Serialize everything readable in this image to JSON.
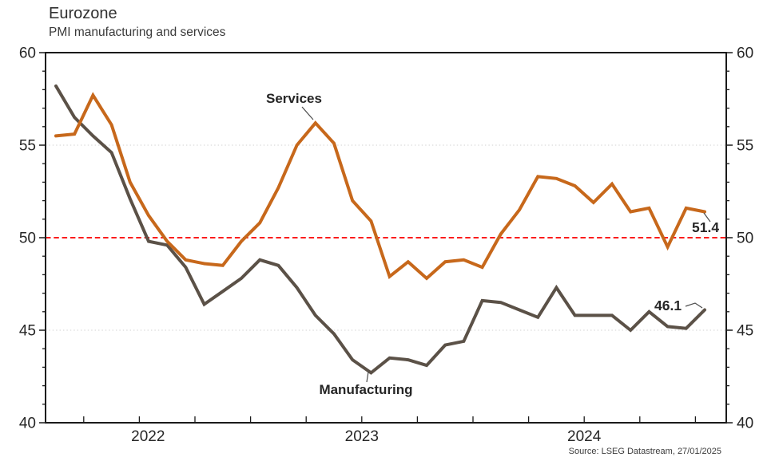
{
  "chart_data": {
    "type": "line",
    "title": "Eurozone",
    "subtitle": "PMI manufacturing and services",
    "source": "Source: LSEG Datastream, 27/01/2025",
    "x": [
      "Feb 2022",
      "Mar 2022",
      "Apr 2022",
      "May 2022",
      "Jun 2022",
      "Jul 2022",
      "Aug 2022",
      "Sep 2022",
      "Oct 2022",
      "Nov 2022",
      "Dec 2022",
      "Jan 2023",
      "Feb 2023",
      "Mar 2023",
      "Apr 2023",
      "May 2023",
      "Jun 2023",
      "Jul 2023",
      "Aug 2023",
      "Sep 2023",
      "Oct 2023",
      "Nov 2023",
      "Dec 2023",
      "Jan 2024",
      "Feb 2024",
      "Mar 2024",
      "Apr 2024",
      "May 2024",
      "Jun 2024",
      "Jul 2024",
      "Aug 2024",
      "Sep 2024",
      "Oct 2024",
      "Nov 2024",
      "Dec 2024",
      "Jan 2025"
    ],
    "series": [
      {
        "name": "Manufacturing",
        "color": "#5B5147",
        "end_label": "46.1",
        "values": [
          58.2,
          56.5,
          55.5,
          54.6,
          52.1,
          49.8,
          49.6,
          48.4,
          46.4,
          47.1,
          47.8,
          48.8,
          48.5,
          47.3,
          45.8,
          44.8,
          43.4,
          42.7,
          43.5,
          43.4,
          43.1,
          44.2,
          44.4,
          46.6,
          46.5,
          46.1,
          45.7,
          47.3,
          45.8,
          45.8,
          45.8,
          45.0,
          46.0,
          45.2,
          45.1,
          46.1
        ]
      },
      {
        "name": "Services",
        "color": "#C7681B",
        "end_label": "51.4",
        "values": [
          55.5,
          55.6,
          57.7,
          56.1,
          53.0,
          51.2,
          49.8,
          48.8,
          48.6,
          48.5,
          49.8,
          50.8,
          52.7,
          55.0,
          56.2,
          55.1,
          52.0,
          50.9,
          47.9,
          48.7,
          47.8,
          48.7,
          48.8,
          48.4,
          50.2,
          51.5,
          53.3,
          53.2,
          52.8,
          51.9,
          52.9,
          51.4,
          51.6,
          49.5,
          51.6,
          51.4
        ]
      }
    ],
    "ylim": [
      40,
      60
    ],
    "y_major_ticks": [
      60,
      55,
      50,
      45,
      40
    ],
    "y_minor_step": 1,
    "x_year_labels": [
      "2022",
      "2023",
      "2024"
    ],
    "x_tick_interval": "quarterly",
    "reference_line": {
      "value": 50,
      "color": "#FB1D1D",
      "style": "dashed"
    },
    "gridlines": {
      "values": [
        55,
        45
      ],
      "color": "#D9D9D9",
      "style": "dotted"
    },
    "grid": "horizontal-sparse",
    "legend_position": "inline-annotations",
    "axis_color": "#1A1A1A",
    "label_color": "#262626",
    "dual_y_axis": true
  },
  "annotations": {
    "services_label": "Services",
    "manufacturing_label": "Manufacturing",
    "services_end_value": "51.4",
    "manufacturing_end_value": "46.1"
  }
}
